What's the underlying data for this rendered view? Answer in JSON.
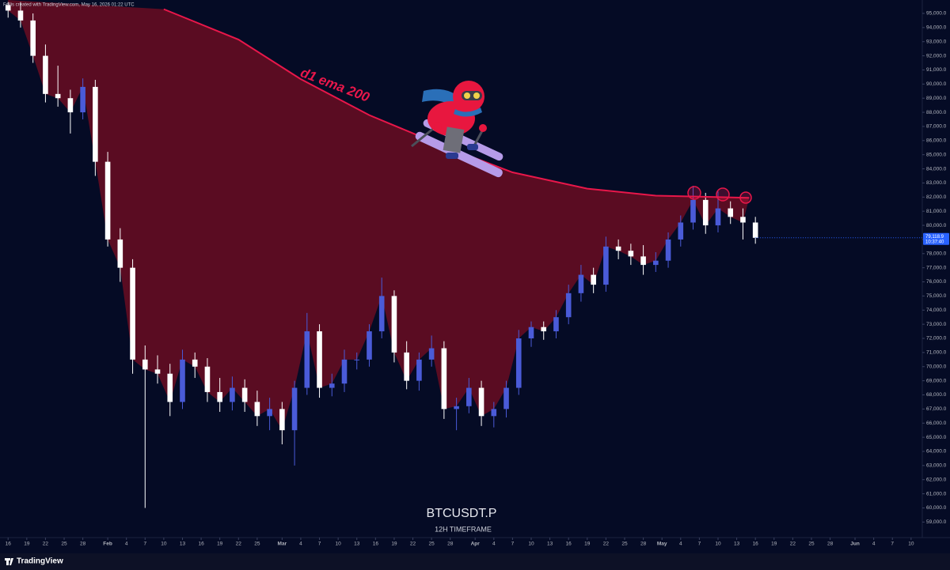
{
  "header": {
    "text": "Follis created with TradingView.com, May 16, 2026 01:22 UTC"
  },
  "footer": {
    "brand": "TradingView"
  },
  "chart_data": {
    "type": "candlestick",
    "title": "BTCUSDT.P",
    "subtitle": "12H TIMEFRAME",
    "up_color": "#4a5bd8",
    "down_color": "#ffffff",
    "x": [
      0,
      2,
      4,
      6,
      8,
      10,
      12,
      14,
      16,
      18,
      20,
      22,
      24,
      26,
      28,
      30,
      32,
      34,
      36,
      38,
      40,
      42,
      44,
      46,
      48,
      50,
      52,
      54,
      56,
      58,
      60,
      62,
      64,
      66,
      68,
      70,
      72,
      74,
      76,
      78,
      80,
      82,
      84,
      86,
      88,
      90,
      92,
      94,
      96,
      98,
      100,
      102,
      104,
      106,
      108,
      110,
      112,
      114,
      116,
      118,
      120
    ],
    "open": [
      95600,
      95200,
      94500,
      92000,
      89300,
      89000,
      88000,
      89800,
      84500,
      79000,
      77000,
      70500,
      69800,
      69500,
      67500,
      70500,
      70000,
      68200,
      67500,
      68500,
      67500,
      66500,
      67000,
      65500,
      68500,
      72500,
      68500,
      68800,
      70500,
      70500,
      72500,
      75000,
      71000,
      69000,
      70500,
      71300,
      67000,
      67200,
      68500,
      66500,
      67000,
      68500,
      72000,
      72800,
      72500,
      73500,
      75200,
      76500,
      75800,
      78500,
      78200,
      77800,
      77200,
      77500,
      79000,
      80200,
      81800,
      80000,
      81200,
      80600,
      80200
    ],
    "high": [
      95800,
      95800,
      95000,
      92800,
      91300,
      89600,
      90400,
      90300,
      85200,
      79800,
      77600,
      71500,
      70800,
      70200,
      71200,
      71000,
      70600,
      69200,
      69300,
      69100,
      68300,
      67800,
      67500,
      69000,
      73800,
      73000,
      69500,
      71200,
      71000,
      73000,
      76300,
      75400,
      71800,
      71000,
      72200,
      71800,
      67800,
      69200,
      69000,
      67500,
      69000,
      72600,
      73200,
      73200,
      74000,
      75800,
      77200,
      77000,
      79200,
      79000,
      78700,
      78600,
      78100,
      79500,
      80700,
      82800,
      82300,
      82400,
      81700,
      81200,
      80600
    ],
    "low": [
      94700,
      94000,
      91500,
      88700,
      88400,
      86500,
      87500,
      83500,
      78500,
      76000,
      69500,
      60000,
      68800,
      66500,
      67000,
      69200,
      67500,
      66800,
      66900,
      66800,
      65800,
      65500,
      64500,
      63000,
      68000,
      67800,
      67900,
      68200,
      69800,
      70000,
      72000,
      70300,
      68400,
      68300,
      70000,
      66300,
      65500,
      66700,
      65800,
      65700,
      66400,
      68000,
      71400,
      71900,
      72000,
      73000,
      74600,
      75200,
      75300,
      77600,
      77200,
      76500,
      76700,
      77000,
      78500,
      79700,
      79400,
      79500,
      80100,
      79000,
      78700
    ],
    "close": [
      95200,
      94500,
      92000,
      89300,
      89000,
      88000,
      89800,
      84500,
      79000,
      77000,
      70500,
      69800,
      69500,
      67500,
      70500,
      70000,
      68200,
      67500,
      68500,
      67500,
      66500,
      67000,
      65500,
      68500,
      72500,
      68500,
      68800,
      70500,
      70500,
      72500,
      75000,
      71000,
      69000,
      70500,
      71300,
      67000,
      67200,
      68500,
      66500,
      67000,
      68500,
      72000,
      72800,
      72500,
      73500,
      75200,
      76500,
      75800,
      78500,
      78200,
      77800,
      77200,
      77500,
      79000,
      80200,
      81800,
      80000,
      81200,
      80600,
      80200,
      79118.9
    ],
    "ema": {
      "name": "d1 ema 200",
      "color": "#e8174a",
      "x": [
        25,
        37,
        47,
        58,
        70,
        81,
        93,
        104,
        119
      ],
      "values": [
        95300,
        93150,
        90350,
        87800,
        85600,
        83750,
        82600,
        82100,
        81950
      ]
    },
    "last_price": {
      "value": 79118.9,
      "label": "79,118.9",
      "countdown": "10:37:40"
    },
    "xlim": [
      -1.3,
      146.8
    ],
    "xticks": [
      {
        "value": 0,
        "label": "16"
      },
      {
        "value": 3,
        "label": "19"
      },
      {
        "value": 6,
        "label": "22"
      },
      {
        "value": 9,
        "label": "25"
      },
      {
        "value": 12,
        "label": "28"
      },
      {
        "value": 16,
        "label": "Feb"
      },
      {
        "value": 19,
        "label": "4"
      },
      {
        "value": 22,
        "label": "7"
      },
      {
        "value": 25,
        "label": "10"
      },
      {
        "value": 28,
        "label": "13"
      },
      {
        "value": 31,
        "label": "16"
      },
      {
        "value": 34,
        "label": "19"
      },
      {
        "value": 37,
        "label": "22"
      },
      {
        "value": 40,
        "label": "25"
      },
      {
        "value": 44,
        "label": "Mar"
      },
      {
        "value": 47,
        "label": "4"
      },
      {
        "value": 50,
        "label": "7"
      },
      {
        "value": 53,
        "label": "10"
      },
      {
        "value": 56,
        "label": "13"
      },
      {
        "value": 59,
        "label": "16"
      },
      {
        "value": 62,
        "label": "19"
      },
      {
        "value": 65,
        "label": "22"
      },
      {
        "value": 68,
        "label": "25"
      },
      {
        "value": 71,
        "label": "28"
      },
      {
        "value": 75,
        "label": "Apr"
      },
      {
        "value": 78,
        "label": "4"
      },
      {
        "value": 81,
        "label": "7"
      },
      {
        "value": 84,
        "label": "10"
      },
      {
        "value": 87,
        "label": "13"
      },
      {
        "value": 90,
        "label": "16"
      },
      {
        "value": 93,
        "label": "19"
      },
      {
        "value": 96,
        "label": "22"
      },
      {
        "value": 99,
        "label": "25"
      },
      {
        "value": 102,
        "label": "28"
      },
      {
        "value": 105,
        "label": "May"
      },
      {
        "value": 108,
        "label": "4"
      },
      {
        "value": 111,
        "label": "7"
      },
      {
        "value": 114,
        "label": "10"
      },
      {
        "value": 117,
        "label": "13"
      },
      {
        "value": 120,
        "label": "16"
      },
      {
        "value": 123,
        "label": "19"
      },
      {
        "value": 126,
        "label": "22"
      },
      {
        "value": 129,
        "label": "25"
      },
      {
        "value": 132,
        "label": "28"
      },
      {
        "value": 136,
        "label": "Jun"
      },
      {
        "value": 139,
        "label": "4"
      },
      {
        "value": 142,
        "label": "7"
      },
      {
        "value": 145,
        "label": "10"
      }
    ],
    "ylim": [
      57900,
      95950
    ],
    "yticks": [
      {
        "value": 59000,
        "label": "59,000.0"
      },
      {
        "value": 60000,
        "label": "60,000.0"
      },
      {
        "value": 61000,
        "label": "61,000.0"
      },
      {
        "value": 62000,
        "label": "62,000.0"
      },
      {
        "value": 63000,
        "label": "63,000.0"
      },
      {
        "value": 64000,
        "label": "64,000.0"
      },
      {
        "value": 65000,
        "label": "65,000.0"
      },
      {
        "value": 66000,
        "label": "66,000.0"
      },
      {
        "value": 67000,
        "label": "67,000.0"
      },
      {
        "value": 68000,
        "label": "68,000.0"
      },
      {
        "value": 69000,
        "label": "69,000.0"
      },
      {
        "value": 70000,
        "label": "70,000.0"
      },
      {
        "value": 71000,
        "label": "71,000.0"
      },
      {
        "value": 72000,
        "label": "72,000.0"
      },
      {
        "value": 73000,
        "label": "73,000.0"
      },
      {
        "value": 74000,
        "label": "74,000.0"
      },
      {
        "value": 75000,
        "label": "75,000.0"
      },
      {
        "value": 76000,
        "label": "76,000.0"
      },
      {
        "value": 77000,
        "label": "77,000.0"
      },
      {
        "value": 78000,
        "label": "78,000.0"
      },
      {
        "value": 79000,
        "label": "79,000.0"
      },
      {
        "value": 80000,
        "label": "80,000.0"
      },
      {
        "value": 81000,
        "label": "81,000.0"
      },
      {
        "value": 82000,
        "label": "82,000.0"
      },
      {
        "value": 83000,
        "label": "83,000.0"
      },
      {
        "value": 84000,
        "label": "84,000.0"
      },
      {
        "value": 85000,
        "label": "85,000.0"
      },
      {
        "value": 86000,
        "label": "86,000.0"
      },
      {
        "value": 87000,
        "label": "87,000.0"
      },
      {
        "value": 88000,
        "label": "88,000.0"
      },
      {
        "value": 89000,
        "label": "89,000.0"
      },
      {
        "value": 90000,
        "label": "90,000.0"
      },
      {
        "value": 91000,
        "label": "91,000.0"
      },
      {
        "value": 92000,
        "label": "92,000.0"
      },
      {
        "value": 93000,
        "label": "93,000.0"
      },
      {
        "value": 94000,
        "label": "94,000.0"
      },
      {
        "value": 95000,
        "label": "95,000.0"
      }
    ]
  }
}
